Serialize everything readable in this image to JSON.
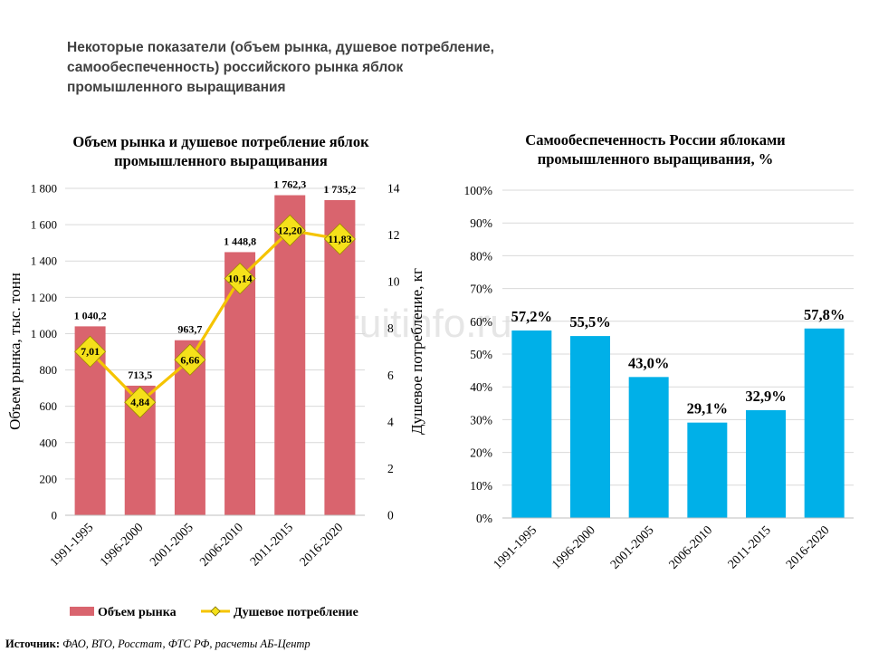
{
  "page": {
    "title_lines": [
      "Некоторые показатели (объем рынка, душевое потребление,",
      "самообеспеченность) российского рынка яблок",
      "промышленного выращивания"
    ],
    "watermark": "fruitinfo.ru",
    "source_label": "Источник:",
    "source_text": "ФАО, ВТО, Росстат, ФТС РФ, расчеты АБ-Центр"
  },
  "colors": {
    "bar_market": "#d9646e",
    "line_consumption": "#f5c400",
    "marker_fill": "#f5e11a",
    "bar_self": "#00b0e8",
    "grid": "#d9d9d9"
  },
  "chart_data": [
    {
      "type": "bar",
      "title_lines": [
        "Объем рынка и душевое потребление яблок",
        "промышленного выращивания"
      ],
      "categories": [
        "1991-1995",
        "1996-2000",
        "2001-2005",
        "2006-2010",
        "2011-2015",
        "2016-2020"
      ],
      "series": [
        {
          "name": "Объем рынка",
          "kind": "bar",
          "axis": "left",
          "values": [
            1040.2,
            713.5,
            963.7,
            1448.8,
            1762.3,
            1735.2
          ],
          "labels": [
            "1 040,2",
            "713,5",
            "963,7",
            "1 448,8",
            "1 762,3",
            "1 735,2"
          ]
        },
        {
          "name": "Душевое потребление",
          "kind": "line",
          "axis": "right",
          "values": [
            7.01,
            4.84,
            6.66,
            10.14,
            12.2,
            11.83
          ],
          "labels": [
            "7,01",
            "4,84",
            "6,66",
            "10,14",
            "12,20",
            "11,83"
          ]
        }
      ],
      "ylabel": "Объем рынка, тыс. тонн",
      "ylim": [
        0,
        1800
      ],
      "yticks": [
        0,
        200,
        400,
        600,
        800,
        1000,
        1200,
        1400,
        1600,
        1800
      ],
      "ytick_labels": [
        "0",
        "200",
        "400",
        "600",
        "800",
        "1 000",
        "1 200",
        "1 400",
        "1 600",
        "1 800"
      ],
      "y2label": "Душевое потребление, кг",
      "y2lim": [
        0,
        14
      ],
      "y2ticks": [
        0,
        2,
        4,
        6,
        8,
        10,
        12,
        14
      ],
      "y2tick_labels": [
        "0",
        "2",
        "4",
        "6",
        "8",
        "10",
        "12",
        "14"
      ],
      "grid": true,
      "legend": "bottom"
    },
    {
      "type": "bar",
      "title_lines": [
        "Самообеспеченность России яблоками",
        "промышленного выращивания, %"
      ],
      "categories": [
        "1991-1995",
        "1996-2000",
        "2001-2005",
        "2006-2010",
        "2011-2015",
        "2016-2020"
      ],
      "values": [
        57.2,
        55.5,
        43.0,
        29.1,
        32.9,
        57.8
      ],
      "labels": [
        "57,2%",
        "55,5%",
        "43,0%",
        "29,1%",
        "32,9%",
        "57,8%"
      ],
      "ylim": [
        0,
        100
      ],
      "yticks": [
        0,
        10,
        20,
        30,
        40,
        50,
        60,
        70,
        80,
        90,
        100
      ],
      "ytick_labels": [
        "0%",
        "10%",
        "20%",
        "30%",
        "40%",
        "50%",
        "60%",
        "70%",
        "80%",
        "90%",
        "100%"
      ],
      "grid": true,
      "legend": "none"
    }
  ]
}
